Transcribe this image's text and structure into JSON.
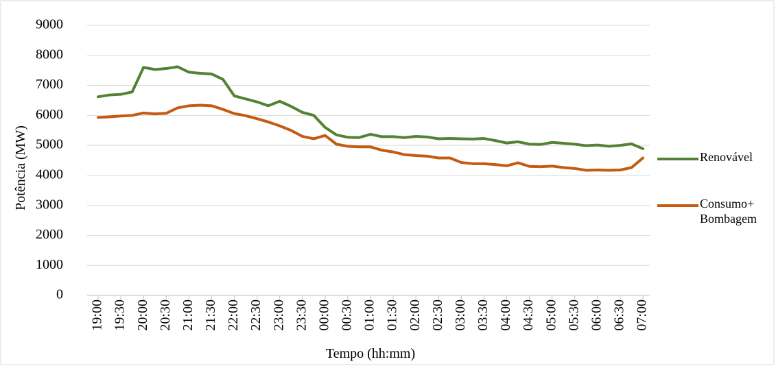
{
  "chart_data": {
    "type": "line",
    "x_label": "Tempo (hh:mm)",
    "y_label": "Potência (MW)",
    "categories": [
      "19:00",
      null,
      "19:30",
      null,
      "20:00",
      null,
      "20:30",
      null,
      "21:00",
      null,
      "21:30",
      null,
      "22:00",
      null,
      "22:30",
      null,
      "23:00",
      null,
      "23:30",
      null,
      "00:00",
      null,
      "00:30",
      null,
      "01:00",
      null,
      "01:30",
      null,
      "02:00",
      null,
      "02:30",
      null,
      "03:00",
      null,
      "03:30",
      null,
      "04:00",
      null,
      "04:30",
      null,
      "05:00",
      null,
      "05:30",
      null,
      "06:00",
      null,
      "06:30",
      null,
      "07:00"
    ],
    "series": [
      {
        "name": "Renovável",
        "color": "#548235",
        "values": [
          6620,
          6680,
          6700,
          6780,
          7600,
          7530,
          7560,
          7620,
          7440,
          7400,
          7380,
          7200,
          6650,
          6550,
          6450,
          6320,
          6470,
          6300,
          6100,
          6000,
          5600,
          5350,
          5270,
          5260,
          5370,
          5290,
          5290,
          5260,
          5300,
          5280,
          5220,
          5230,
          5220,
          5210,
          5230,
          5160,
          5080,
          5120,
          5040,
          5030,
          5100,
          5070,
          5040,
          4990,
          5010,
          4970,
          5000,
          5050,
          4890
        ]
      },
      {
        "name": "Consumo+ Bombagem",
        "color": "#c55a11",
        "values": [
          5930,
          5950,
          5980,
          6000,
          6080,
          6050,
          6070,
          6250,
          6320,
          6340,
          6320,
          6200,
          6060,
          5990,
          5890,
          5780,
          5650,
          5500,
          5300,
          5220,
          5330,
          5040,
          4970,
          4950,
          4950,
          4840,
          4780,
          4690,
          4660,
          4640,
          4580,
          4580,
          4430,
          4390,
          4390,
          4360,
          4320,
          4420,
          4300,
          4290,
          4310,
          4260,
          4230,
          4170,
          4180,
          4170,
          4180,
          4260,
          4580
        ]
      }
    ],
    "ylim": [
      0,
      9000
    ],
    "yticks": [
      0,
      1000,
      2000,
      3000,
      4000,
      5000,
      6000,
      7000,
      8000,
      9000
    ],
    "grid": true,
    "legend": "right"
  }
}
